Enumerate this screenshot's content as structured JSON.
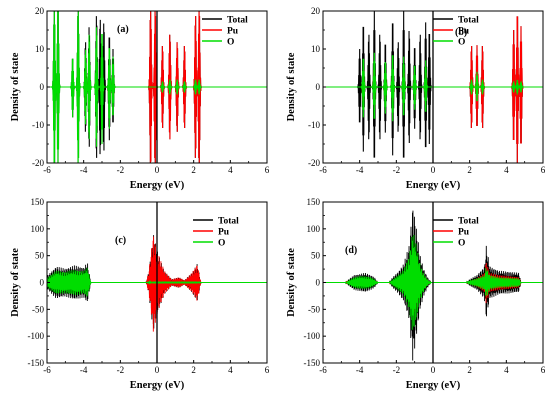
{
  "chart_data": [
    {
      "type": "line",
      "panel_label": "(a)",
      "xlabel": "Energy (eV)",
      "ylabel": "Density of state",
      "xlim": [
        -6,
        6
      ],
      "ylim": [
        -20,
        20
      ],
      "x_ticks": [
        -6,
        -4,
        -2,
        0,
        2,
        4,
        6
      ],
      "y_ticks": [
        -20,
        -10,
        0,
        10,
        20
      ],
      "fermi_level": 0,
      "legend": {
        "placement": "top-right",
        "entries": [
          "Total",
          "Pu",
          "O"
        ]
      },
      "series": [
        {
          "name": "Total",
          "color": "#000000",
          "peaks": [
            [
              -5.6,
              22
            ],
            [
              -5.4,
              22
            ],
            [
              -4.6,
              8
            ],
            [
              -4.3,
              22
            ],
            [
              -3.9,
              12
            ],
            [
              -3.7,
              16
            ],
            [
              -3.3,
              19
            ],
            [
              -3.1,
              18
            ],
            [
              -2.9,
              17
            ],
            [
              -2.6,
              14
            ],
            [
              -2.4,
              10
            ],
            [
              -0.35,
              22
            ],
            [
              -0.1,
              22
            ],
            [
              0.3,
              11
            ],
            [
              0.7,
              14
            ],
            [
              1.1,
              12
            ],
            [
              1.5,
              11
            ],
            [
              2.1,
              19
            ],
            [
              2.3,
              22
            ]
          ]
        },
        {
          "name": "Pu",
          "color": "#ff0000",
          "peaks": [
            [
              -5.6,
              4
            ],
            [
              -4.3,
              3
            ],
            [
              -3.9,
              5
            ],
            [
              -3.3,
              6
            ],
            [
              -3.0,
              6
            ],
            [
              -2.6,
              5
            ],
            [
              -2.4,
              4
            ],
            [
              -0.35,
              22
            ],
            [
              -0.1,
              22
            ],
            [
              0.3,
              11
            ],
            [
              0.7,
              14
            ],
            [
              1.1,
              12
            ],
            [
              1.5,
              11
            ],
            [
              2.1,
              19
            ],
            [
              2.3,
              22
            ]
          ]
        },
        {
          "name": "O",
          "color": "#00dd00",
          "peaks": [
            [
              -5.6,
              22
            ],
            [
              -5.4,
              22
            ],
            [
              -4.6,
              8
            ],
            [
              -4.3,
              22
            ],
            [
              -3.9,
              10
            ],
            [
              -3.7,
              14
            ],
            [
              -3.3,
              16
            ],
            [
              -3.0,
              15
            ],
            [
              -2.6,
              11
            ],
            [
              -2.4,
              8
            ],
            [
              0.3,
              1.5
            ],
            [
              0.7,
              2
            ],
            [
              1.1,
              2
            ],
            [
              1.5,
              1.5
            ],
            [
              2.1,
              2
            ],
            [
              2.3,
              2
            ]
          ]
        }
      ]
    },
    {
      "type": "line",
      "panel_label": "(b)",
      "xlabel": "Energy (eV)",
      "ylabel": "Density of state",
      "xlim": [
        -6,
        6
      ],
      "ylim": [
        -20,
        20
      ],
      "x_ticks": [
        -6,
        -4,
        -2,
        0,
        2,
        4,
        6
      ],
      "y_ticks": [
        -20,
        -10,
        0,
        10,
        20
      ],
      "fermi_level": 0,
      "legend": {
        "placement": "top-right",
        "entries": [
          "Total",
          "Pu",
          "O"
        ]
      },
      "series": [
        {
          "name": "Total",
          "color": "#000000",
          "peaks": [
            [
              -4.0,
              10
            ],
            [
              -3.8,
              17
            ],
            [
              -3.5,
              14
            ],
            [
              -3.2,
              20
            ],
            [
              -2.9,
              14
            ],
            [
              -2.6,
              12
            ],
            [
              -2.2,
              18
            ],
            [
              -1.9,
              12
            ],
            [
              -1.6,
              20
            ],
            [
              -1.3,
              15
            ],
            [
              -1.0,
              11
            ],
            [
              -0.7,
              14
            ],
            [
              -0.4,
              17
            ],
            [
              -0.2,
              15
            ],
            [
              2.1,
              11
            ],
            [
              2.4,
              11
            ],
            [
              2.7,
              11
            ],
            [
              4.4,
              15
            ],
            [
              4.6,
              20
            ],
            [
              4.8,
              16
            ]
          ]
        },
        {
          "name": "Pu",
          "color": "#ff0000",
          "peaks": [
            [
              -3.8,
              5
            ],
            [
              -3.2,
              6
            ],
            [
              -2.6,
              4
            ],
            [
              -2.2,
              5
            ],
            [
              -1.6,
              5
            ],
            [
              -1.0,
              4
            ],
            [
              -0.4,
              5
            ],
            [
              2.1,
              11
            ],
            [
              2.4,
              11
            ],
            [
              2.7,
              11
            ],
            [
              4.4,
              15
            ],
            [
              4.6,
              20
            ],
            [
              4.8,
              16
            ]
          ]
        },
        {
          "name": "O",
          "color": "#00dd00",
          "peaks": [
            [
              -3.8,
              8
            ],
            [
              -3.2,
              9
            ],
            [
              -2.6,
              7
            ],
            [
              -2.2,
              9
            ],
            [
              -1.6,
              8
            ],
            [
              -1.0,
              6
            ],
            [
              -0.4,
              7
            ],
            [
              2.1,
              2
            ],
            [
              2.4,
              4
            ],
            [
              2.7,
              2
            ],
            [
              4.4,
              1.5
            ],
            [
              4.6,
              2
            ],
            [
              4.8,
              1.5
            ]
          ]
        }
      ]
    },
    {
      "type": "line",
      "panel_label": "(c)",
      "xlabel": "Energy (eV)",
      "ylabel": "Density of state",
      "xlim": [
        -6,
        6
      ],
      "ylim": [
        -150,
        150
      ],
      "x_ticks": [
        -6,
        -4,
        -2,
        0,
        2,
        4,
        6
      ],
      "y_ticks": [
        -150,
        -100,
        -50,
        0,
        50,
        100,
        150
      ],
      "fermi_level": 0,
      "legend": {
        "placement": "top-right",
        "entries": [
          "Total",
          "Pu",
          "O"
        ]
      },
      "series": [
        {
          "name": "Total",
          "color": "#000000",
          "envelope": [
            [
              -6.0,
              12
            ],
            [
              -5.5,
              30
            ],
            [
              -5.0,
              26
            ],
            [
              -4.5,
              32
            ],
            [
              -4.0,
              28
            ],
            [
              -3.8,
              38
            ],
            [
              -3.6,
              0
            ],
            [
              -0.6,
              0
            ],
            [
              -0.45,
              20
            ],
            [
              -0.2,
              92
            ],
            [
              0.0,
              60
            ],
            [
              0.4,
              22
            ],
            [
              0.8,
              6
            ],
            [
              1.2,
              10
            ],
            [
              1.5,
              4
            ],
            [
              1.9,
              18
            ],
            [
              2.2,
              35
            ],
            [
              2.4,
              0
            ]
          ]
        },
        {
          "name": "Pu",
          "color": "#ff0000",
          "envelope": [
            [
              -6.0,
              4
            ],
            [
              -5.5,
              8
            ],
            [
              -5.0,
              6
            ],
            [
              -4.5,
              9
            ],
            [
              -4.0,
              7
            ],
            [
              -3.8,
              10
            ],
            [
              -3.6,
              0
            ],
            [
              -0.6,
              0
            ],
            [
              -0.45,
              20
            ],
            [
              -0.2,
              92
            ],
            [
              0.0,
              60
            ],
            [
              0.4,
              22
            ],
            [
              0.8,
              6
            ],
            [
              1.2,
              10
            ],
            [
              1.5,
              4
            ],
            [
              1.9,
              18
            ],
            [
              2.2,
              35
            ],
            [
              2.4,
              0
            ]
          ]
        },
        {
          "name": "O",
          "color": "#00dd00",
          "envelope": [
            [
              -6.0,
              9
            ],
            [
              -5.5,
              22
            ],
            [
              -5.0,
              20
            ],
            [
              -4.5,
              24
            ],
            [
              -4.0,
              21
            ],
            [
              -3.8,
              28
            ],
            [
              -3.6,
              0
            ],
            [
              -0.6,
              0
            ],
            [
              -0.2,
              2
            ],
            [
              0.4,
              2
            ],
            [
              1.2,
              2
            ],
            [
              1.9,
              2
            ],
            [
              2.2,
              2
            ],
            [
              2.4,
              0
            ]
          ]
        }
      ]
    },
    {
      "type": "line",
      "panel_label": "(d)",
      "xlabel": "Energy (eV)",
      "ylabel": "Density of state",
      "xlim": [
        -6,
        6
      ],
      "ylim": [
        -150,
        150
      ],
      "x_ticks": [
        -6,
        -4,
        -2,
        0,
        2,
        4,
        6
      ],
      "y_ticks": [
        -150,
        -100,
        -50,
        0,
        50,
        100,
        150
      ],
      "fermi_level": 0,
      "legend": {
        "placement": "top-right",
        "entries": [
          "Total",
          "Pu",
          "O"
        ]
      },
      "series": [
        {
          "name": "Total",
          "color": "#000000",
          "envelope": [
            [
              -4.8,
              0
            ],
            [
              -4.6,
              6
            ],
            [
              -4.3,
              14
            ],
            [
              -4.0,
              16
            ],
            [
              -3.7,
              18
            ],
            [
              -3.4,
              14
            ],
            [
              -3.2,
              10
            ],
            [
              -3.0,
              0
            ],
            [
              -2.4,
              0
            ],
            [
              -2.2,
              10
            ],
            [
              -1.9,
              20
            ],
            [
              -1.6,
              35
            ],
            [
              -1.3,
              70
            ],
            [
              -1.1,
              148
            ],
            [
              -0.9,
              100
            ],
            [
              -0.7,
              50
            ],
            [
              -0.5,
              25
            ],
            [
              -0.3,
              10
            ],
            [
              -0.1,
              0
            ],
            [
              1.8,
              0
            ],
            [
              2.0,
              6
            ],
            [
              2.4,
              14
            ],
            [
              2.8,
              30
            ],
            [
              2.9,
              70
            ],
            [
              3.1,
              30
            ],
            [
              3.6,
              22
            ],
            [
              4.2,
              20
            ],
            [
              4.7,
              18
            ],
            [
              4.8,
              0
            ]
          ]
        },
        {
          "name": "Pu",
          "color": "#ff0000",
          "envelope": [
            [
              -4.8,
              0
            ],
            [
              -4.6,
              2
            ],
            [
              -4.3,
              5
            ],
            [
              -4.0,
              5
            ],
            [
              -3.7,
              6
            ],
            [
              -3.4,
              5
            ],
            [
              -3.2,
              3
            ],
            [
              -3.0,
              0
            ],
            [
              -2.4,
              0
            ],
            [
              -2.2,
              4
            ],
            [
              -1.9,
              10
            ],
            [
              -1.6,
              18
            ],
            [
              -1.3,
              35
            ],
            [
              -1.1,
              62
            ],
            [
              -0.9,
              45
            ],
            [
              -0.7,
              22
            ],
            [
              -0.5,
              12
            ],
            [
              -0.3,
              5
            ],
            [
              -0.1,
              0
            ],
            [
              1.8,
              0
            ],
            [
              2.0,
              3
            ],
            [
              2.4,
              8
            ],
            [
              2.8,
              18
            ],
            [
              2.9,
              40
            ],
            [
              3.1,
              18
            ],
            [
              3.6,
              14
            ],
            [
              4.2,
              12
            ],
            [
              4.7,
              10
            ],
            [
              4.8,
              0
            ]
          ]
        },
        {
          "name": "O",
          "color": "#00dd00",
          "envelope": [
            [
              -4.8,
              0
            ],
            [
              -4.6,
              4
            ],
            [
              -4.3,
              10
            ],
            [
              -4.0,
              12
            ],
            [
              -3.7,
              12
            ],
            [
              -3.4,
              10
            ],
            [
              -3.2,
              6
            ],
            [
              -3.0,
              0
            ],
            [
              -2.4,
              0
            ],
            [
              -2.2,
              6
            ],
            [
              -1.9,
              14
            ],
            [
              -1.6,
              24
            ],
            [
              -1.3,
              50
            ],
            [
              -1.1,
              98
            ],
            [
              -0.9,
              68
            ],
            [
              -0.7,
              34
            ],
            [
              -0.5,
              16
            ],
            [
              -0.3,
              6
            ],
            [
              -0.1,
              0
            ],
            [
              1.8,
              0
            ],
            [
              2.0,
              4
            ],
            [
              2.4,
              8
            ],
            [
              2.8,
              14
            ],
            [
              2.9,
              30
            ],
            [
              3.1,
              14
            ],
            [
              3.6,
              10
            ],
            [
              4.2,
              9
            ],
            [
              4.7,
              8
            ],
            [
              4.8,
              0
            ]
          ]
        }
      ]
    }
  ]
}
